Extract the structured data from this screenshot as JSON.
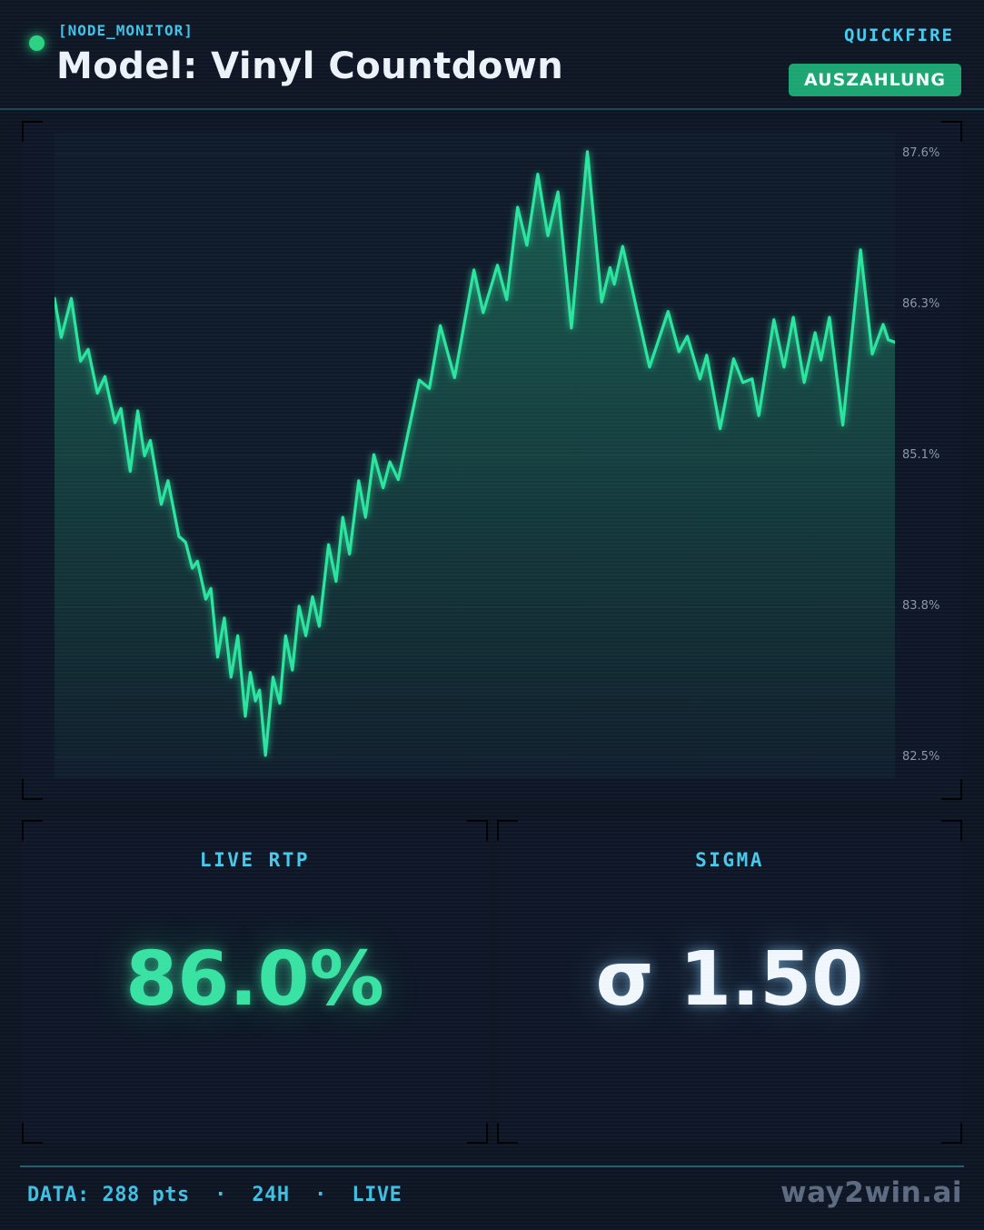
{
  "header": {
    "eyebrow": "[NODE_MONITOR]",
    "title": "Model: Vinyl Countdown",
    "mode_label": "QUICKFIRE",
    "payout_button_label": "AUSZAHLUNG"
  },
  "chart_data": {
    "type": "line",
    "series_name": "Live RTP",
    "x_axis": "24H window, 288 samples",
    "y_unit": "%",
    "ylim": [
      82.33,
      87.78
    ],
    "yticks": [
      {
        "label": "87.6%",
        "value": 87.6
      },
      {
        "label": "86.3%",
        "value": 86.325
      },
      {
        "label": "85.1%",
        "value": 85.05
      },
      {
        "label": "83.8%",
        "value": 83.775
      },
      {
        "label": "82.5%",
        "value": 82.5
      }
    ],
    "grid": "horizontal",
    "legend": false,
    "line_color": "#2ce59e",
    "fill_color": "#2ce59e",
    "points": [
      [
        0.0,
        86.38
      ],
      [
        0.008,
        86.05
      ],
      [
        0.02,
        86.38
      ],
      [
        0.031,
        85.85
      ],
      [
        0.04,
        85.95
      ],
      [
        0.051,
        85.58
      ],
      [
        0.06,
        85.72
      ],
      [
        0.072,
        85.33
      ],
      [
        0.079,
        85.45
      ],
      [
        0.09,
        84.92
      ],
      [
        0.099,
        85.43
      ],
      [
        0.107,
        85.05
      ],
      [
        0.114,
        85.18
      ],
      [
        0.127,
        84.64
      ],
      [
        0.135,
        84.84
      ],
      [
        0.148,
        84.37
      ],
      [
        0.156,
        84.32
      ],
      [
        0.164,
        84.1
      ],
      [
        0.17,
        84.16
      ],
      [
        0.18,
        83.84
      ],
      [
        0.186,
        83.93
      ],
      [
        0.194,
        83.35
      ],
      [
        0.202,
        83.68
      ],
      [
        0.21,
        83.18
      ],
      [
        0.218,
        83.53
      ],
      [
        0.227,
        82.85
      ],
      [
        0.233,
        83.22
      ],
      [
        0.239,
        82.98
      ],
      [
        0.244,
        83.07
      ],
      [
        0.251,
        82.52
      ],
      [
        0.26,
        83.18
      ],
      [
        0.268,
        82.96
      ],
      [
        0.275,
        83.53
      ],
      [
        0.283,
        83.24
      ],
      [
        0.291,
        83.78
      ],
      [
        0.299,
        83.53
      ],
      [
        0.307,
        83.86
      ],
      [
        0.315,
        83.61
      ],
      [
        0.326,
        84.3
      ],
      [
        0.335,
        83.99
      ],
      [
        0.343,
        84.53
      ],
      [
        0.351,
        84.22
      ],
      [
        0.362,
        84.84
      ],
      [
        0.37,
        84.53
      ],
      [
        0.38,
        85.06
      ],
      [
        0.391,
        84.78
      ],
      [
        0.399,
        85.0
      ],
      [
        0.409,
        84.85
      ],
      [
        0.434,
        85.69
      ],
      [
        0.446,
        85.62
      ],
      [
        0.459,
        86.15
      ],
      [
        0.476,
        85.71
      ],
      [
        0.499,
        86.62
      ],
      [
        0.51,
        86.26
      ],
      [
        0.527,
        86.66
      ],
      [
        0.538,
        86.37
      ],
      [
        0.551,
        87.15
      ],
      [
        0.562,
        86.83
      ],
      [
        0.575,
        87.43
      ],
      [
        0.587,
        86.91
      ],
      [
        0.599,
        87.28
      ],
      [
        0.615,
        86.13
      ],
      [
        0.634,
        87.62
      ],
      [
        0.651,
        86.35
      ],
      [
        0.661,
        86.64
      ],
      [
        0.666,
        86.5
      ],
      [
        0.676,
        86.82
      ],
      [
        0.708,
        85.8
      ],
      [
        0.73,
        86.27
      ],
      [
        0.743,
        85.93
      ],
      [
        0.753,
        86.06
      ],
      [
        0.768,
        85.7
      ],
      [
        0.776,
        85.9
      ],
      [
        0.792,
        85.28
      ],
      [
        0.808,
        85.87
      ],
      [
        0.819,
        85.67
      ],
      [
        0.83,
        85.7
      ],
      [
        0.838,
        85.39
      ],
      [
        0.856,
        86.2
      ],
      [
        0.868,
        85.8
      ],
      [
        0.879,
        86.22
      ],
      [
        0.892,
        85.67
      ],
      [
        0.905,
        86.09
      ],
      [
        0.912,
        85.86
      ],
      [
        0.922,
        86.22
      ],
      [
        0.938,
        85.31
      ],
      [
        0.959,
        86.79
      ],
      [
        0.973,
        85.91
      ],
      [
        0.986,
        86.16
      ],
      [
        0.992,
        86.03
      ],
      [
        1.0,
        86.01
      ]
    ]
  },
  "stats": {
    "rtp": {
      "label": "LIVE RTP",
      "value": "86.0%"
    },
    "sigma": {
      "label": "SIGMA",
      "value": "σ 1.50"
    }
  },
  "footer": {
    "data_line": "DATA: 288 pts  ·  24H  ·  LIVE",
    "brand": "way2win.ai"
  },
  "colors": {
    "accent_cyan": "#45cdf0",
    "accent_green": "#2ce59e",
    "button_green": "#1ca571",
    "value_green": "#38e3a2",
    "bracket_teal": "#27697a",
    "bracket_green": "#35806c",
    "bracket_cyan": "#2b7086",
    "axis_label": "#8b95a8",
    "brand_grey": "#5c6a80"
  }
}
